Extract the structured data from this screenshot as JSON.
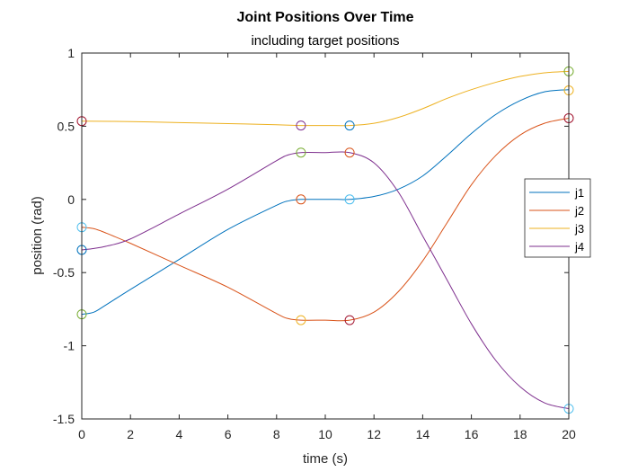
{
  "chart_data": {
    "type": "line",
    "title": "Joint Positions Over Time",
    "subtitle": "including target positions",
    "xlabel": "time (s)",
    "ylabel": "position (rad)",
    "xlim": [
      0,
      20
    ],
    "ylim": [
      -1.5,
      1
    ],
    "xticks": [
      0,
      2,
      4,
      6,
      8,
      10,
      12,
      14,
      16,
      18,
      20
    ],
    "yticks": [
      -1.5,
      -1,
      -0.5,
      0,
      0.5,
      1
    ],
    "grid": false,
    "legend_position": "right",
    "series": [
      {
        "name": "j1",
        "color": "#0072BD",
        "x": [
          0,
          0.5,
          1,
          2,
          4,
          6,
          8,
          8.5,
          9,
          10,
          10.5,
          11,
          12,
          13,
          14,
          15,
          16,
          17,
          18,
          19,
          20
        ],
        "y": [
          -0.785,
          -0.77,
          -0.72,
          -0.615,
          -0.41,
          -0.205,
          -0.04,
          -0.01,
          0.0,
          0.0,
          0.0,
          0.0,
          0.02,
          0.07,
          0.16,
          0.3,
          0.45,
          0.58,
          0.675,
          0.735,
          0.75
        ]
      },
      {
        "name": "j2",
        "color": "#D95319",
        "x": [
          0,
          0.5,
          1,
          2,
          4,
          6,
          8,
          8.5,
          9,
          10,
          11,
          12,
          13,
          14,
          15,
          16,
          17,
          18,
          19,
          20
        ],
        "y": [
          -0.19,
          -0.2,
          -0.23,
          -0.3,
          -0.45,
          -0.6,
          -0.78,
          -0.815,
          -0.825,
          -0.825,
          -0.825,
          -0.77,
          -0.63,
          -0.42,
          -0.16,
          0.1,
          0.3,
          0.44,
          0.52,
          0.555
        ]
      },
      {
        "name": "j3",
        "color": "#EDB120",
        "x": [
          0,
          2,
          4,
          6,
          8,
          9,
          10,
          11,
          12,
          13,
          14,
          15,
          16,
          17,
          18,
          19,
          20
        ],
        "y": [
          0.535,
          0.532,
          0.525,
          0.518,
          0.51,
          0.505,
          0.505,
          0.505,
          0.52,
          0.56,
          0.62,
          0.69,
          0.75,
          0.8,
          0.84,
          0.865,
          0.875
        ]
      },
      {
        "name": "j4",
        "color": "#7E2F8E",
        "x": [
          0,
          0.5,
          1,
          2,
          4,
          6,
          8,
          8.5,
          9,
          10,
          11,
          12,
          13,
          14,
          15,
          16,
          17,
          18,
          19,
          20
        ],
        "y": [
          -0.345,
          -0.335,
          -0.32,
          -0.27,
          -0.1,
          0.07,
          0.265,
          0.305,
          0.32,
          0.32,
          0.32,
          0.25,
          0.05,
          -0.25,
          -0.55,
          -0.85,
          -1.1,
          -1.28,
          -1.39,
          -1.43
        ]
      }
    ],
    "target_markers": [
      {
        "x": 0,
        "y": 0.535,
        "color": "#A2142F"
      },
      {
        "x": 0,
        "y": -0.19,
        "color": "#4DBEEE"
      },
      {
        "x": 0,
        "y": -0.345,
        "color": "#0072BD"
      },
      {
        "x": 0,
        "y": -0.785,
        "color": "#77AC30"
      },
      {
        "x": 9,
        "y": 0.505,
        "color": "#7E2F8E"
      },
      {
        "x": 9,
        "y": 0.32,
        "color": "#77AC30"
      },
      {
        "x": 9,
        "y": 0.0,
        "color": "#D95319"
      },
      {
        "x": 9,
        "y": -0.825,
        "color": "#EDB120"
      },
      {
        "x": 11,
        "y": 0.505,
        "color": "#0072BD"
      },
      {
        "x": 11,
        "y": 0.32,
        "color": "#D95319"
      },
      {
        "x": 11,
        "y": 0.0,
        "color": "#4DBEEE"
      },
      {
        "x": 11,
        "y": -0.825,
        "color": "#A2142F"
      },
      {
        "x": 20,
        "y": 0.875,
        "color": "#77AC30"
      },
      {
        "x": 20,
        "y": 0.745,
        "color": "#EDB120"
      },
      {
        "x": 20,
        "y": 0.555,
        "color": "#A2142F"
      },
      {
        "x": 20,
        "y": -1.43,
        "color": "#4DBEEE"
      }
    ]
  }
}
